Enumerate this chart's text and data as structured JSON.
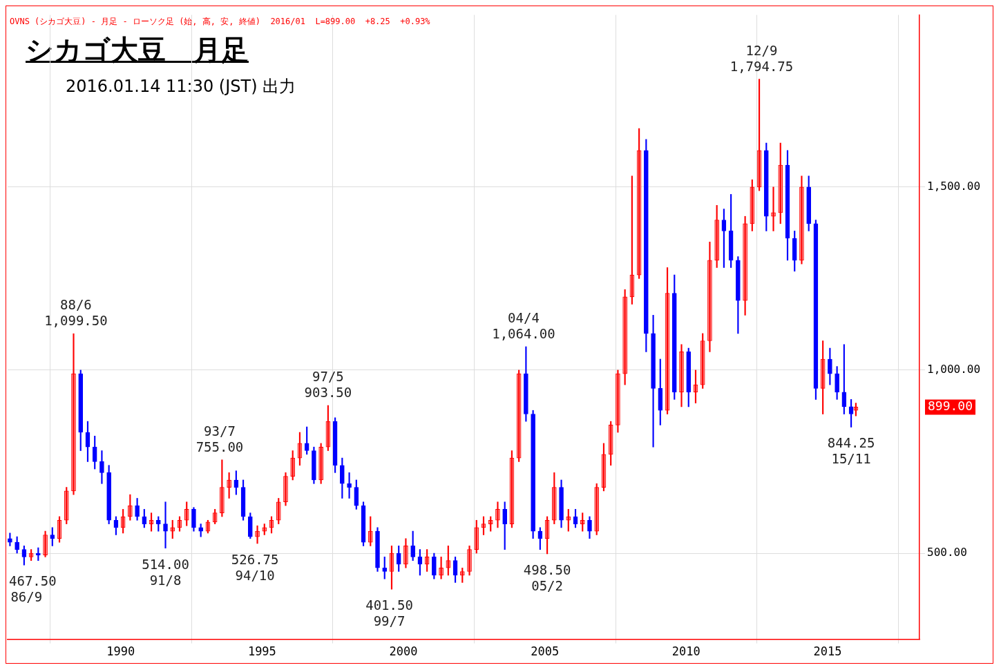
{
  "chart_data": {
    "type": "candlestick",
    "title": "シカゴ大豆　月足",
    "subtitle": "2016.01.14 11:30 (JST) 出力",
    "x": [
      "1986-02",
      "1986-05",
      "1986-08",
      "1986-11",
      "1987-02",
      "1987-05",
      "1987-08",
      "1987-11",
      "1988-02",
      "1988-05",
      "1988-08",
      "1988-11",
      "1989-02",
      "1989-05",
      "1989-08",
      "1989-11",
      "1990-02",
      "1990-05",
      "1990-08",
      "1990-11",
      "1991-02",
      "1991-05",
      "1991-08",
      "1991-11",
      "1992-02",
      "1992-05",
      "1992-08",
      "1992-11",
      "1993-02",
      "1993-05",
      "1993-08",
      "1993-11",
      "1994-02",
      "1994-05",
      "1994-08",
      "1994-11",
      "1995-02",
      "1995-05",
      "1995-08",
      "1995-11",
      "1996-02",
      "1996-05",
      "1996-08",
      "1996-11",
      "1997-02",
      "1997-05",
      "1997-08",
      "1997-11",
      "1998-02",
      "1998-05",
      "1998-08",
      "1998-11",
      "1999-02",
      "1999-05",
      "1999-08",
      "1999-11",
      "2000-02",
      "2000-05",
      "2000-08",
      "2000-11",
      "2001-02",
      "2001-05",
      "2001-08",
      "2001-11",
      "2002-02",
      "2002-05",
      "2002-08",
      "2002-11",
      "2003-02",
      "2003-05",
      "2003-08",
      "2003-11",
      "2004-02",
      "2004-05",
      "2004-08",
      "2004-11",
      "2005-02",
      "2005-05",
      "2005-08",
      "2005-11",
      "2006-02",
      "2006-05",
      "2006-08",
      "2006-11",
      "2007-02",
      "2007-05",
      "2007-08",
      "2007-11",
      "2008-02",
      "2008-05",
      "2008-08",
      "2008-11",
      "2009-02",
      "2009-05",
      "2009-08",
      "2009-11",
      "2010-02",
      "2010-05",
      "2010-08",
      "2010-11",
      "2011-02",
      "2011-05",
      "2011-08",
      "2011-11",
      "2012-02",
      "2012-05",
      "2012-08",
      "2012-11",
      "2013-02",
      "2013-05",
      "2013-08",
      "2013-11",
      "2014-02",
      "2014-05",
      "2014-08",
      "2014-11",
      "2015-02",
      "2015-05",
      "2015-08",
      "2015-11",
      "2016-01"
    ],
    "ohlc": [
      [
        540,
        555,
        520,
        530
      ],
      [
        530,
        545,
        500,
        510
      ],
      [
        510,
        520,
        467.5,
        490
      ],
      [
        490,
        510,
        480,
        500
      ],
      [
        500,
        515,
        480,
        495
      ],
      [
        495,
        560,
        490,
        550
      ],
      [
        550,
        570,
        520,
        540
      ],
      [
        540,
        600,
        530,
        590
      ],
      [
        590,
        680,
        580,
        670
      ],
      [
        670,
        1099.5,
        660,
        990
      ],
      [
        990,
        1000,
        780,
        830
      ],
      [
        830,
        860,
        750,
        790
      ],
      [
        790,
        820,
        730,
        750
      ],
      [
        750,
        780,
        690,
        720
      ],
      [
        720,
        740,
        580,
        590
      ],
      [
        590,
        600,
        550,
        570
      ],
      [
        570,
        620,
        555,
        600
      ],
      [
        600,
        660,
        590,
        630
      ],
      [
        630,
        650,
        590,
        600
      ],
      [
        600,
        620,
        570,
        580
      ],
      [
        580,
        610,
        560,
        590
      ],
      [
        590,
        600,
        560,
        580
      ],
      [
        580,
        640,
        514,
        560
      ],
      [
        560,
        590,
        540,
        570
      ],
      [
        570,
        600,
        560,
        590
      ],
      [
        590,
        640,
        575,
        620
      ],
      [
        620,
        625,
        560,
        570
      ],
      [
        570,
        580,
        545,
        560
      ],
      [
        560,
        590,
        555,
        585
      ],
      [
        585,
        620,
        580,
        610
      ],
      [
        610,
        755,
        600,
        680
      ],
      [
        680,
        720,
        650,
        700
      ],
      [
        700,
        725,
        660,
        680
      ],
      [
        680,
        700,
        590,
        600
      ],
      [
        600,
        610,
        540,
        545
      ],
      [
        545,
        575,
        526.75,
        560
      ],
      [
        560,
        580,
        550,
        570
      ],
      [
        570,
        600,
        555,
        590
      ],
      [
        590,
        650,
        580,
        640
      ],
      [
        640,
        720,
        630,
        710
      ],
      [
        710,
        780,
        700,
        760
      ],
      [
        760,
        830,
        740,
        800
      ],
      [
        800,
        845,
        770,
        780
      ],
      [
        780,
        790,
        690,
        700
      ],
      [
        700,
        800,
        690,
        790
      ],
      [
        790,
        903.5,
        780,
        860
      ],
      [
        860,
        870,
        720,
        740
      ],
      [
        740,
        760,
        650,
        690
      ],
      [
        690,
        720,
        650,
        680
      ],
      [
        680,
        700,
        620,
        630
      ],
      [
        630,
        640,
        520,
        530
      ],
      [
        530,
        600,
        520,
        560
      ],
      [
        560,
        570,
        450,
        460
      ],
      [
        460,
        490,
        430,
        450
      ],
      [
        450,
        520,
        401.5,
        500
      ],
      [
        500,
        520,
        450,
        470
      ],
      [
        470,
        540,
        460,
        520
      ],
      [
        520,
        560,
        480,
        490
      ],
      [
        490,
        510,
        440,
        470
      ],
      [
        470,
        510,
        450,
        490
      ],
      [
        490,
        500,
        430,
        440
      ],
      [
        440,
        490,
        430,
        460
      ],
      [
        460,
        520,
        440,
        480
      ],
      [
        480,
        490,
        420,
        440
      ],
      [
        440,
        460,
        420,
        450
      ],
      [
        450,
        520,
        440,
        510
      ],
      [
        510,
        590,
        500,
        570
      ],
      [
        570,
        600,
        550,
        580
      ],
      [
        580,
        600,
        560,
        590
      ],
      [
        590,
        640,
        570,
        620
      ],
      [
        620,
        640,
        510,
        580
      ],
      [
        580,
        780,
        570,
        760
      ],
      [
        760,
        1000,
        750,
        990
      ],
      [
        990,
        1064,
        860,
        880
      ],
      [
        880,
        890,
        540,
        560
      ],
      [
        560,
        570,
        510,
        540
      ],
      [
        540,
        600,
        498.5,
        590
      ],
      [
        590,
        720,
        580,
        680
      ],
      [
        680,
        700,
        570,
        590
      ],
      [
        590,
        620,
        560,
        600
      ],
      [
        600,
        620,
        570,
        580
      ],
      [
        580,
        610,
        560,
        590
      ],
      [
        590,
        600,
        540,
        560
      ],
      [
        560,
        690,
        550,
        680
      ],
      [
        680,
        800,
        670,
        770
      ],
      [
        770,
        860,
        740,
        850
      ],
      [
        850,
        1000,
        830,
        990
      ],
      [
        990,
        1220,
        960,
        1200
      ],
      [
        1200,
        1530,
        1180,
        1260
      ],
      [
        1260,
        1660,
        1250,
        1600
      ],
      [
        1600,
        1630,
        1050,
        1100
      ],
      [
        1100,
        1150,
        790,
        950
      ],
      [
        950,
        1030,
        850,
        890
      ],
      [
        890,
        1280,
        880,
        1210
      ],
      [
        1210,
        1260,
        920,
        940
      ],
      [
        940,
        1070,
        900,
        1050
      ],
      [
        1050,
        1060,
        900,
        940
      ],
      [
        940,
        1000,
        910,
        960
      ],
      [
        960,
        1100,
        950,
        1080
      ],
      [
        1080,
        1350,
        1050,
        1300
      ],
      [
        1300,
        1450,
        1280,
        1410
      ],
      [
        1410,
        1440,
        1280,
        1380
      ],
      [
        1380,
        1480,
        1280,
        1300
      ],
      [
        1300,
        1310,
        1100,
        1190
      ],
      [
        1190,
        1420,
        1150,
        1400
      ],
      [
        1400,
        1520,
        1380,
        1500
      ],
      [
        1500,
        1794.75,
        1490,
        1600
      ],
      [
        1600,
        1620,
        1380,
        1420
      ],
      [
        1420,
        1500,
        1380,
        1430
      ],
      [
        1430,
        1620,
        1400,
        1560
      ],
      [
        1560,
        1600,
        1300,
        1360
      ],
      [
        1360,
        1380,
        1270,
        1300
      ],
      [
        1300,
        1530,
        1290,
        1500
      ],
      [
        1500,
        1530,
        1380,
        1400
      ],
      [
        1400,
        1410,
        920,
        950
      ],
      [
        950,
        1080,
        880,
        1030
      ],
      [
        1030,
        1060,
        960,
        990
      ],
      [
        990,
        1010,
        920,
        940
      ],
      [
        940,
        1070,
        880,
        900
      ],
      [
        900,
        920,
        844.25,
        880
      ],
      [
        890,
        910,
        875,
        899
      ]
    ],
    "colors": [
      "#0000ff",
      "#0000ff",
      "#0000ff",
      "#ff0000",
      "#0000ff",
      "#ff0000",
      "#0000ff",
      "#ff0000",
      "#ff0000",
      "#ff0000",
      "#0000ff",
      "#0000ff",
      "#0000ff",
      "#0000ff",
      "#0000ff",
      "#0000ff",
      "#ff0000",
      "#ff0000",
      "#0000ff",
      "#0000ff",
      "#ff0000",
      "#0000ff",
      "#0000ff",
      "#ff0000",
      "#ff0000",
      "#ff0000",
      "#0000ff",
      "#0000ff",
      "#ff0000",
      "#ff0000",
      "#ff0000",
      "#ff0000",
      "#0000ff",
      "#0000ff",
      "#0000ff",
      "#ff0000",
      "#ff0000",
      "#ff0000",
      "#ff0000",
      "#ff0000",
      "#ff0000",
      "#ff0000",
      "#0000ff",
      "#0000ff",
      "#ff0000",
      "#ff0000",
      "#0000ff",
      "#0000ff",
      "#0000ff",
      "#0000ff",
      "#0000ff",
      "#ff0000",
      "#0000ff",
      "#0000ff",
      "#ff0000",
      "#0000ff",
      "#ff0000",
      "#0000ff",
      "#0000ff",
      "#ff0000",
      "#0000ff",
      "#ff0000",
      "#ff0000",
      "#0000ff",
      "#ff0000",
      "#ff0000",
      "#ff0000",
      "#ff0000",
      "#ff0000",
      "#ff0000",
      "#0000ff",
      "#ff0000",
      "#ff0000",
      "#0000ff",
      "#0000ff",
      "#0000ff",
      "#ff0000",
      "#ff0000",
      "#0000ff",
      "#ff0000",
      "#0000ff",
      "#ff0000",
      "#0000ff",
      "#ff0000",
      "#ff0000",
      "#ff0000",
      "#ff0000",
      "#ff0000",
      "#ff0000",
      "#ff0000",
      "#0000ff",
      "#0000ff",
      "#0000ff",
      "#ff0000",
      "#0000ff",
      "#ff0000",
      "#0000ff",
      "#ff0000",
      "#ff0000",
      "#ff0000",
      "#ff0000",
      "#0000ff",
      "#0000ff",
      "#0000ff",
      "#ff0000",
      "#ff0000",
      "#ff0000",
      "#0000ff",
      "#ff0000",
      "#ff0000",
      "#0000ff",
      "#0000ff",
      "#ff0000",
      "#0000ff",
      "#0000ff",
      "#ff0000",
      "#0000ff",
      "#0000ff",
      "#0000ff",
      "#0000ff",
      "#ff0000"
    ],
    "xlim": [
      "1986-01",
      "2018-04"
    ],
    "xticks": [
      "1990",
      "1995",
      "2000",
      "2005",
      "2010",
      "2015"
    ],
    "ylim": [
      265,
      1970
    ],
    "yticks": [
      {
        "value": 500,
        "label": "500.00"
      },
      {
        "value": 1000,
        "label": "1,000.00"
      },
      {
        "value": 1500,
        "label": "1,500.00"
      }
    ],
    "grid": true,
    "legend": false,
    "annotations": [
      "OVNS (シカゴ大豆) - 月足 - ローソク足 (始, 高, 安, 終値)  2016/01  L=899.00  +8.25  +0.93%",
      {
        "text": "467.50\n86/9",
        "x": "1986-09",
        "y": 467.5
      },
      {
        "text": "88/6\n1,099.50",
        "x": "1988-06",
        "y": 1099.5
      },
      {
        "text": "514.00\n91/8",
        "x": "1991-08",
        "y": 514
      },
      {
        "text": "93/7\n755.00",
        "x": "1993-07",
        "y": 755
      },
      {
        "text": "526.75\n94/10",
        "x": "1994-10",
        "y": 526.75
      },
      {
        "text": "97/5\n903.50",
        "x": "1997-05",
        "y": 903.5
      },
      {
        "text": "401.50\n99/7",
        "x": "1999-07",
        "y": 401.5
      },
      {
        "text": "04/4\n1,064.00",
        "x": "2004-04",
        "y": 1064
      },
      {
        "text": "498.50\n05/2",
        "x": "2005-02",
        "y": 498.5
      },
      {
        "text": "12/9\n1,794.75",
        "x": "2012-09",
        "y": 1794.75
      },
      {
        "text": "844.25\n15/11",
        "x": "2015-11",
        "y": 844.25
      },
      "899.00"
    ]
  }
}
